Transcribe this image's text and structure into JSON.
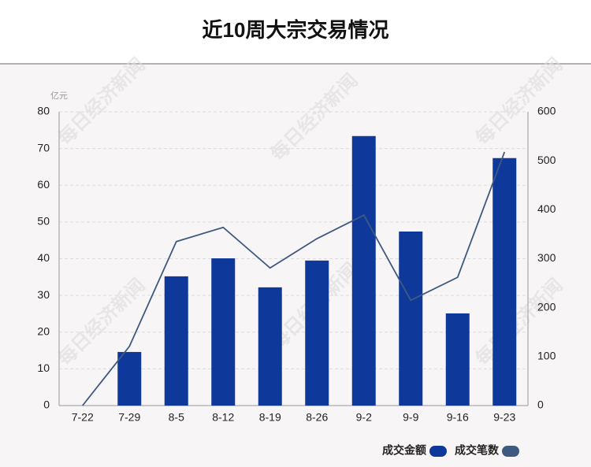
{
  "chart_data": {
    "type": "bar-line",
    "title": "近10周大宗交易情况",
    "y_unit": "亿元",
    "watermark": "每日经济新闻",
    "categories": [
      "7-22",
      "7-29",
      "8-5",
      "8-12",
      "8-19",
      "8-26",
      "9-2",
      "9-9",
      "9-16",
      "9-23"
    ],
    "series": [
      {
        "name": "成交金额",
        "type": "bar",
        "color": "#0e399b",
        "values": [
          0,
          14.6,
          35.2,
          40.1,
          32.2,
          39.5,
          73.4,
          47.4,
          25.1,
          67.4
        ]
      },
      {
        "name": "成交笔数",
        "type": "line",
        "axis": "y2",
        "color": "#3e5a80",
        "values": [
          0,
          121,
          335,
          364,
          281,
          341,
          389,
          215,
          262,
          518
        ]
      }
    ],
    "ylim": [
      0,
      80
    ],
    "yticks": [
      0,
      10,
      20,
      30,
      40,
      50,
      60,
      70,
      80
    ],
    "y2lim": [
      0,
      600
    ],
    "y2ticks": [
      0,
      100,
      200,
      300,
      400,
      500,
      600
    ],
    "grid": true
  }
}
